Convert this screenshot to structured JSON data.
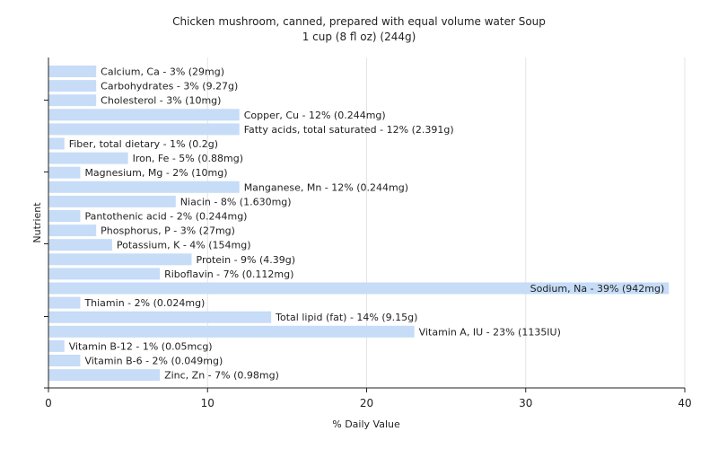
{
  "chart_data": {
    "type": "bar",
    "orientation": "horizontal",
    "title": "Chicken mushroom, canned, prepared with equal volume water Soup",
    "subtitle": "1 cup (8 fl oz) (244g)",
    "xlabel": "% Daily Value",
    "ylabel": "Nutrient",
    "xlim": [
      0,
      40
    ],
    "xticks": [
      0,
      10,
      20,
      30,
      40
    ],
    "grid": true,
    "bar_color": "#c6dcf7",
    "categories": [
      "Calcium, Ca",
      "Carbohydrates",
      "Cholesterol",
      "Copper, Cu",
      "Fatty acids, total saturated",
      "Fiber, total dietary",
      "Iron, Fe",
      "Magnesium, Mg",
      "Manganese, Mn",
      "Niacin",
      "Pantothenic acid",
      "Phosphorus, P",
      "Potassium, K",
      "Protein",
      "Riboflavin",
      "Sodium, Na",
      "Thiamin",
      "Total lipid (fat)",
      "Vitamin A, IU",
      "Vitamin B-12",
      "Vitamin B-6",
      "Zinc, Zn"
    ],
    "values": [
      3,
      3,
      3,
      12,
      12,
      1,
      5,
      2,
      12,
      8,
      2,
      3,
      4,
      9,
      7,
      39,
      2,
      14,
      23,
      1,
      2,
      7
    ],
    "labels": [
      "Calcium, Ca - 3% (29mg)",
      "Carbohydrates - 3% (9.27g)",
      "Cholesterol - 3% (10mg)",
      "Copper, Cu - 12% (0.244mg)",
      "Fatty acids, total saturated - 12% (2.391g)",
      "Fiber, total dietary - 1% (0.2g)",
      "Iron, Fe - 5% (0.88mg)",
      "Magnesium, Mg - 2% (10mg)",
      "Manganese, Mn - 12% (0.244mg)",
      "Niacin - 8% (1.630mg)",
      "Pantothenic acid - 2% (0.244mg)",
      "Phosphorus, P - 3% (27mg)",
      "Potassium, K - 4% (154mg)",
      "Protein - 9% (4.39g)",
      "Riboflavin - 7% (0.112mg)",
      "Sodium, Na - 39% (942mg)",
      "Thiamin - 2% (0.024mg)",
      "Total lipid (fat) - 14% (9.15g)",
      "Vitamin A, IU - 23% (1135IU)",
      "Vitamin B-12 - 1% (0.05mcg)",
      "Vitamin B-6 - 2% (0.049mg)",
      "Zinc, Zn - 7% (0.98mg)"
    ]
  }
}
